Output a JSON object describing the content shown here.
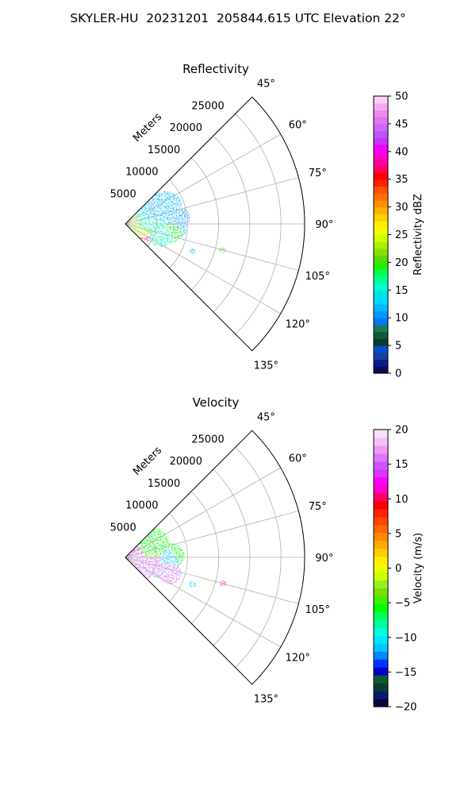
{
  "suptitle": "SKYLER-HU  20231201  205844.615 UTC Elevation 22°",
  "chart_data": [
    {
      "type": "polar-sector-radar",
      "title": "Reflectivity",
      "radial_label": "Meters",
      "radial_ticks": [
        5000,
        10000,
        15000,
        20000,
        25000
      ],
      "radial_tick_labels": [
        "5000",
        "10000",
        "15000",
        "20000",
        "25000"
      ],
      "r_max": 28800,
      "azimuth_range": [
        45,
        135
      ],
      "azimuth_ticks": [
        45,
        60,
        75,
        90,
        105,
        120,
        135
      ],
      "azimuth_tick_labels": [
        "45°",
        "60°",
        "75°",
        "90°",
        "105°",
        "120°",
        "135°"
      ],
      "grid": true,
      "colorbar": {
        "label": "Reflectivity dBZ",
        "range": [
          0,
          50
        ],
        "ticks": [
          0,
          5,
          10,
          15,
          20,
          25,
          30,
          35,
          40,
          45,
          50
        ],
        "tick_labels": [
          "0",
          "5",
          "10",
          "15",
          "20",
          "25",
          "30",
          "35",
          "40",
          "45",
          "50"
        ],
        "colors": [
          "#0b0b52",
          "#0a1a8c",
          "#1b3d9e",
          "#0050c8",
          "#0b3d2c",
          "#0d5a3a",
          "#1e7a4e",
          "#0077ff",
          "#0099ff",
          "#00bbff",
          "#00d8ff",
          "#00e5e5",
          "#00ffcc",
          "#00ff99",
          "#00ff55",
          "#22ee00",
          "#55dd00",
          "#88e000",
          "#aaf000",
          "#ccff00",
          "#eeff00",
          "#ffee00",
          "#ffd000",
          "#ffb000",
          "#ff9000",
          "#ff7000",
          "#ff5000",
          "#ff2000",
          "#ff0000",
          "#ff0060",
          "#ff00a0",
          "#ff00d0",
          "#ee00ff",
          "#cc33ff",
          "#bb55ff",
          "#cc66ff",
          "#dd77ee",
          "#ee88ee",
          "#f4a8f4",
          "#fad0fa"
        ]
      },
      "echo_blobs": [
        {
          "az": 92,
          "r": 3200,
          "value": 36
        },
        {
          "az": 101,
          "r": 4100,
          "value": 38
        },
        {
          "az": 85,
          "r": 2600,
          "value": 24
        },
        {
          "az": 95,
          "r": 5200,
          "value": 20
        },
        {
          "az": 78,
          "r": 4200,
          "value": 18
        },
        {
          "az": 88,
          "r": 6600,
          "value": 14
        },
        {
          "az": 96,
          "r": 8000,
          "value": 12
        },
        {
          "az": 100,
          "r": 6800,
          "value": 19
        },
        {
          "az": 70,
          "r": 4800,
          "value": 16
        },
        {
          "az": 83,
          "r": 8600,
          "value": 11
        },
        {
          "az": 105,
          "r": 16200,
          "value": 20
        },
        {
          "az": 112,
          "r": 11600,
          "value": 12
        },
        {
          "az": 110,
          "r": 6100,
          "value": 15
        },
        {
          "az": 60,
          "r": 5200,
          "value": 13
        },
        {
          "az": 66,
          "r": 7000,
          "value": 12
        }
      ]
    },
    {
      "type": "polar-sector-radar",
      "title": "Velocity",
      "radial_label": "Meters",
      "radial_ticks": [
        5000,
        10000,
        15000,
        20000,
        25000
      ],
      "radial_tick_labels": [
        "5000",
        "10000",
        "15000",
        "20000",
        "25000"
      ],
      "r_max": 28800,
      "azimuth_range": [
        45,
        135
      ],
      "azimuth_ticks": [
        45,
        60,
        75,
        90,
        105,
        120,
        135
      ],
      "azimuth_tick_labels": [
        "45°",
        "60°",
        "75°",
        "90°",
        "105°",
        "120°",
        "135°"
      ],
      "grid": true,
      "colorbar": {
        "label": "Velocity (m/s)",
        "range": [
          -20,
          20
        ],
        "ticks": [
          -20,
          -15,
          -10,
          -5,
          0,
          5,
          10,
          15,
          20
        ],
        "tick_labels": [
          "−20",
          "−15",
          "−10",
          "−5",
          "0",
          "5",
          "10",
          "15",
          "20"
        ],
        "colors": [
          "#08083c",
          "#0a1a6e",
          "#0b3d2c",
          "#0d5a3a",
          "#0000cc",
          "#0033ff",
          "#0088ff",
          "#00c8ff",
          "#00e8ff",
          "#00ffe0",
          "#00ffa0",
          "#00ff60",
          "#00ff00",
          "#44ee00",
          "#77e000",
          "#99ee22",
          "#ccff00",
          "#eeff00",
          "#ffee00",
          "#ffcc00",
          "#ffaa00",
          "#ff8800",
          "#ff6600",
          "#ff4400",
          "#ff2200",
          "#ff0000",
          "#ff0066",
          "#ff00cc",
          "#ff00ff",
          "#dd33ff",
          "#cc55ff",
          "#dd77ff",
          "#ee99f5",
          "#f6c0f6",
          "#fbdcfb"
        ]
      },
      "echo_blobs": [
        {
          "az": 92,
          "r": 3400,
          "value": -11
        },
        {
          "az": 84,
          "r": 3000,
          "value": -7
        },
        {
          "az": 78,
          "r": 4500,
          "value": -6
        },
        {
          "az": 96,
          "r": 6200,
          "value": -10
        },
        {
          "az": 88,
          "r": 7200,
          "value": -6
        },
        {
          "az": 100,
          "r": 6000,
          "value": -12
        },
        {
          "az": 104,
          "r": 4200,
          "value": 15
        },
        {
          "az": 96,
          "r": 2000,
          "value": 12
        },
        {
          "az": 106,
          "r": 3200,
          "value": 16
        },
        {
          "az": 70,
          "r": 4600,
          "value": -5
        },
        {
          "az": 105,
          "r": 16200,
          "value": 11
        },
        {
          "az": 112,
          "r": 11600,
          "value": -12
        },
        {
          "az": 110,
          "r": 7600,
          "value": 16
        },
        {
          "az": 60,
          "r": 5300,
          "value": -6
        }
      ]
    }
  ]
}
